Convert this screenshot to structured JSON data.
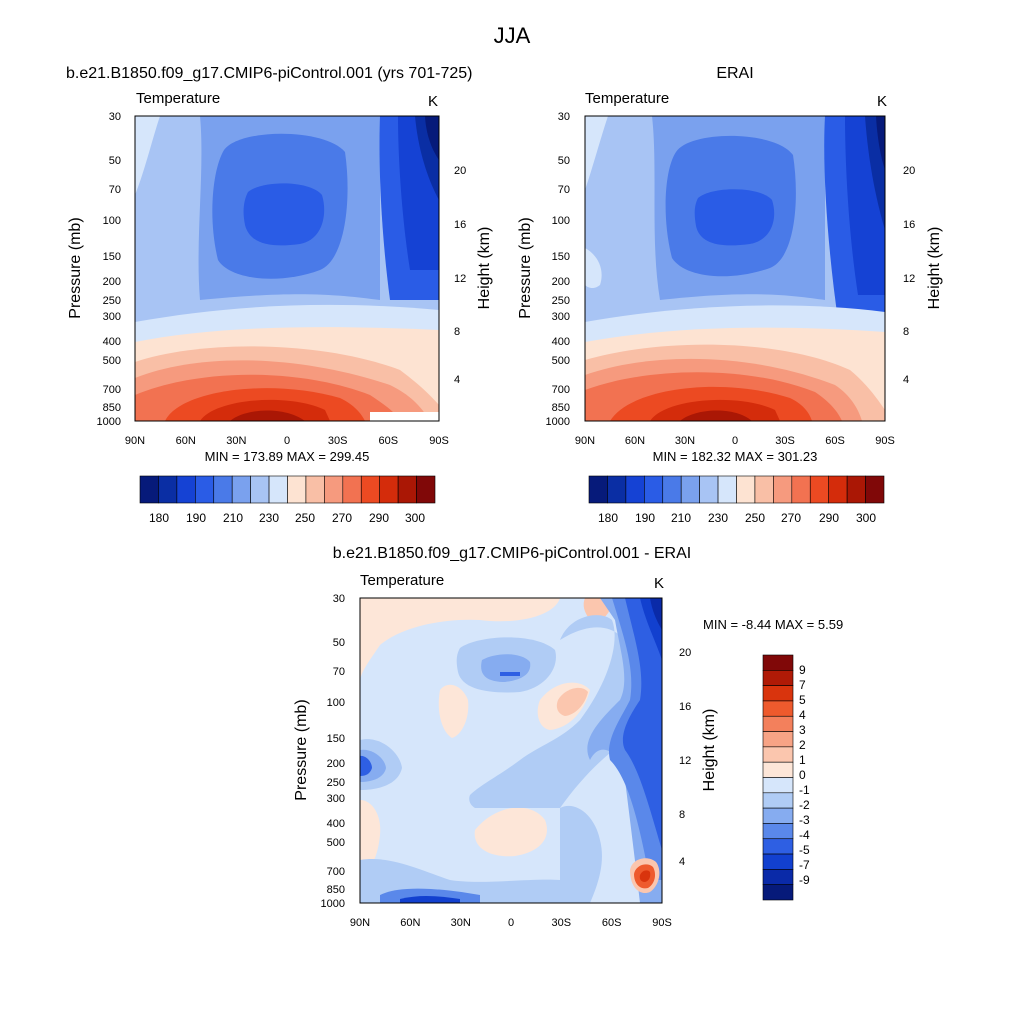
{
  "figure": {
    "title": "JJA"
  },
  "chart_data": [
    {
      "type": "heatmap",
      "panel_title": "b.e21.B1850.f09_g17.CMIP6-piControl.001 (yrs 701-725)",
      "field_label": "Temperature",
      "unit": "K",
      "ylabel": "Pressure (mb)",
      "ylabel_right": "Height (km)",
      "x_ticks": [
        "90N",
        "60N",
        "30N",
        "0",
        "30S",
        "60S",
        "90S"
      ],
      "y_ticks": [
        "30",
        "50",
        "70",
        "100",
        "150",
        "200",
        "250",
        "300",
        "400",
        "500",
        "700",
        "850",
        "1000"
      ],
      "height_ticks": [
        "20",
        "16",
        "12",
        "8",
        "4"
      ],
      "min_max_text": "MIN = 173.89  MAX = 299.45",
      "colorbar_labels": [
        "180",
        "190",
        "210",
        "230",
        "250",
        "270",
        "290",
        "300"
      ],
      "colorbar_colors": [
        "#061a7a",
        "#0a2ea4",
        "#1542d4",
        "#2a5ce6",
        "#4a7ae8",
        "#7aa1ee",
        "#a8c4f4",
        "#d6e6fb",
        "#fde3d2",
        "#f9bfa6",
        "#f69a7e",
        "#f27251",
        "#ec4a22",
        "#d42c0b",
        "#aa1705",
        "#800808"
      ]
    },
    {
      "type": "heatmap",
      "panel_title": "ERAI",
      "field_label": "Temperature",
      "unit": "K",
      "ylabel": "Pressure (mb)",
      "ylabel_right": "Height (km)",
      "x_ticks": [
        "90N",
        "60N",
        "30N",
        "0",
        "30S",
        "60S",
        "90S"
      ],
      "y_ticks": [
        "30",
        "50",
        "70",
        "100",
        "150",
        "200",
        "250",
        "300",
        "400",
        "500",
        "700",
        "850",
        "1000"
      ],
      "height_ticks": [
        "20",
        "16",
        "12",
        "8",
        "4"
      ],
      "min_max_text": "MIN = 182.32  MAX = 301.23",
      "colorbar_labels": [
        "180",
        "190",
        "210",
        "230",
        "250",
        "270",
        "290",
        "300"
      ],
      "colorbar_colors": [
        "#061a7a",
        "#0a2ea4",
        "#1542d4",
        "#2a5ce6",
        "#4a7ae8",
        "#7aa1ee",
        "#a8c4f4",
        "#d6e6fb",
        "#fde3d2",
        "#f9bfa6",
        "#f69a7e",
        "#f27251",
        "#ec4a22",
        "#d42c0b",
        "#aa1705",
        "#800808"
      ]
    },
    {
      "type": "heatmap",
      "panel_title": "b.e21.B1850.f09_g17.CMIP6-piControl.001 - ERAI",
      "field_label": "Temperature",
      "unit": "K",
      "ylabel": "Pressure (mb)",
      "ylabel_right": "Height (km)",
      "x_ticks": [
        "90N",
        "60N",
        "30N",
        "0",
        "30S",
        "60S",
        "90S"
      ],
      "y_ticks": [
        "30",
        "50",
        "70",
        "100",
        "150",
        "200",
        "250",
        "300",
        "400",
        "500",
        "700",
        "850",
        "1000"
      ],
      "height_ticks": [
        "20",
        "16",
        "12",
        "8",
        "4"
      ],
      "min_max_text": "MIN =  -8.44  MAX =   5.59",
      "colorbar_labels": [
        "9",
        "7",
        "5",
        "4",
        "3",
        "2",
        "1",
        "0",
        "-1",
        "-2",
        "-3",
        "-4",
        "-5",
        "-7",
        "-9"
      ],
      "colorbar_colors": [
        "#800808",
        "#b01a06",
        "#d9340d",
        "#ee5a2d",
        "#f3805c",
        "#f7a385",
        "#fbc6ae",
        "#fde6d8",
        "#d6e6fb",
        "#b0ccf5",
        "#86acf0",
        "#5a88ea",
        "#2e5fe3",
        "#1240cf",
        "#0a2aa8",
        "#061a7a"
      ]
    }
  ]
}
